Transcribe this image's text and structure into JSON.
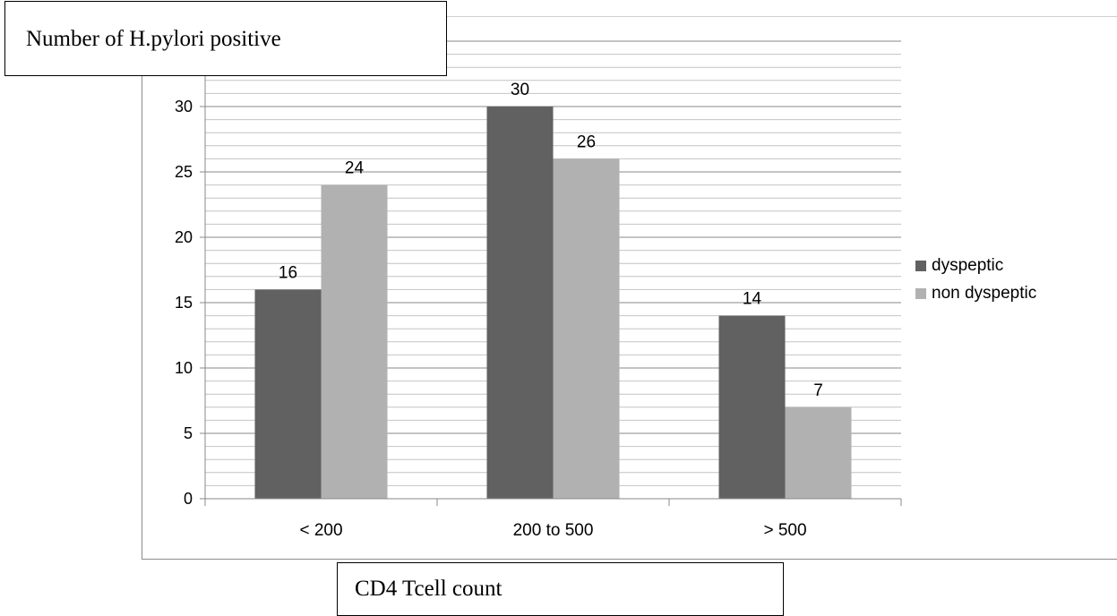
{
  "colors": {
    "dyspeptic": "#616161",
    "non_dyspeptic": "#b1b1b1",
    "grid_major": "#8a8a8a",
    "grid_minor": "#c4c4c4"
  },
  "chart_data": {
    "type": "bar",
    "categories": [
      "< 200",
      "200 to 500",
      "> 500"
    ],
    "series": [
      {
        "name": "dyspeptic",
        "values": [
          16,
          30,
          14
        ]
      },
      {
        "name": "non dyspeptic",
        "values": [
          24,
          26,
          7
        ]
      }
    ],
    "ylabel": "Number of H.pylori positive",
    "xlabel": "CD4 Tcell count",
    "ylim": [
      0,
      35
    ],
    "yticks": [
      0,
      5,
      10,
      15,
      20,
      25,
      30
    ],
    "minor_grid_step": 1,
    "grid": true,
    "legend_position": "right"
  }
}
